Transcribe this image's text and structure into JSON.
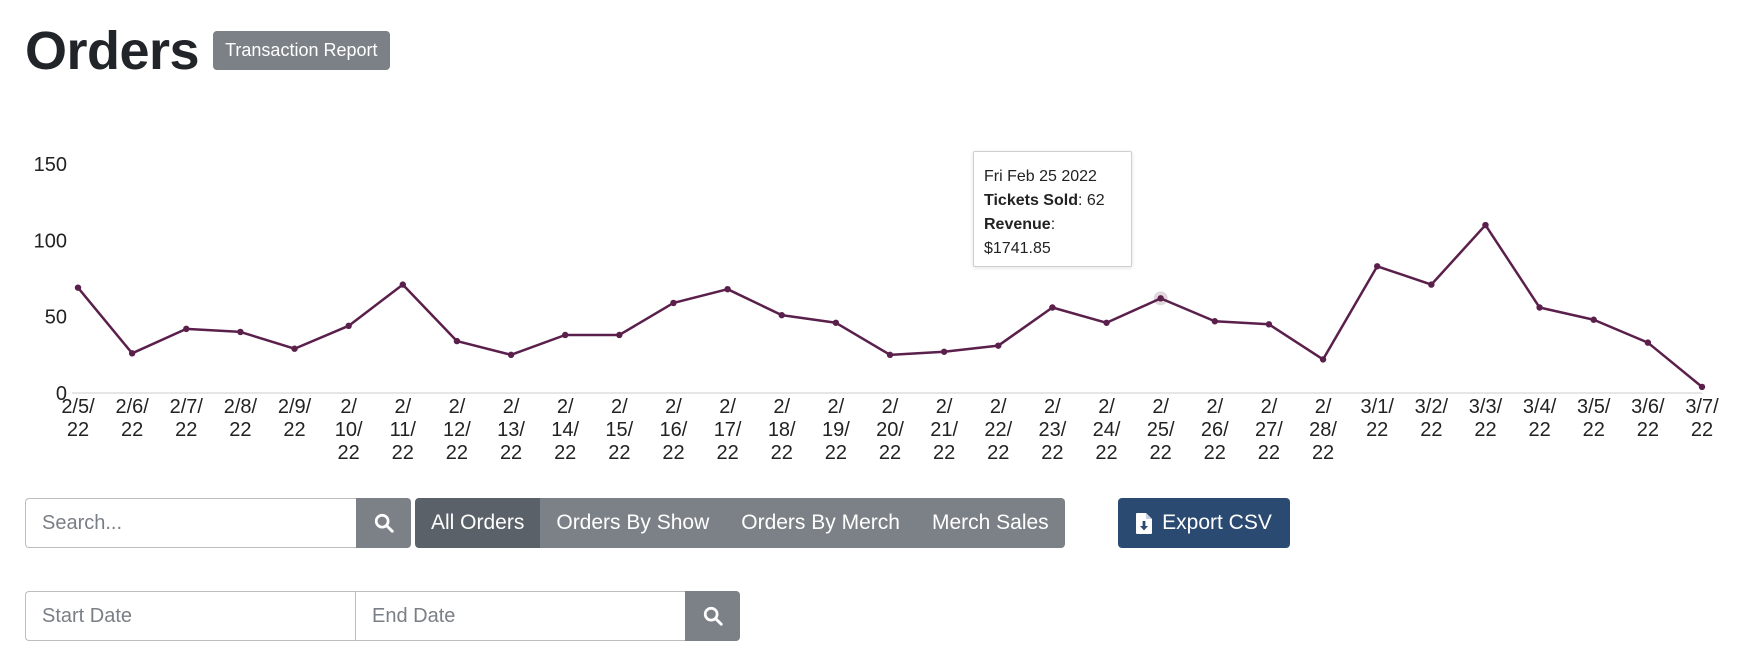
{
  "header": {
    "title": "Orders",
    "transaction_report_label": "Transaction Report"
  },
  "colors": {
    "line": "#5a1f4a",
    "axis": "#cccccc",
    "button_gray": "#7b8186",
    "button_active": "#5b6168",
    "export_blue": "#2b4a72"
  },
  "chart_data": {
    "type": "line",
    "title": "",
    "xlabel": "",
    "ylabel": "",
    "ylim": [
      0,
      150
    ],
    "yticks": [
      "0",
      "50",
      "100",
      "150"
    ],
    "grid": false,
    "categories": [
      "2/5/22",
      "2/6/22",
      "2/7/22",
      "2/8/22",
      "2/9/22",
      "2/10/22",
      "2/11/22",
      "2/12/22",
      "2/13/22",
      "2/14/22",
      "2/15/22",
      "2/16/22",
      "2/17/22",
      "2/18/22",
      "2/19/22",
      "2/20/22",
      "2/21/22",
      "2/22/22",
      "2/23/22",
      "2/24/22",
      "2/25/22",
      "2/26/22",
      "2/27/22",
      "2/28/22",
      "3/1/22",
      "3/2/22",
      "3/3/22",
      "3/4/22",
      "3/5/22",
      "3/6/22",
      "3/7/22"
    ],
    "tick_labels": [
      [
        "2/5/",
        "22"
      ],
      [
        "2/6/",
        "22"
      ],
      [
        "2/7/",
        "22"
      ],
      [
        "2/8/",
        "22"
      ],
      [
        "2/9/",
        "22"
      ],
      [
        "2/",
        "10/",
        "22"
      ],
      [
        "2/",
        "11/",
        "22"
      ],
      [
        "2/",
        "12/",
        "22"
      ],
      [
        "2/",
        "13/",
        "22"
      ],
      [
        "2/",
        "14/",
        "22"
      ],
      [
        "2/",
        "15/",
        "22"
      ],
      [
        "2/",
        "16/",
        "22"
      ],
      [
        "2/",
        "17/",
        "22"
      ],
      [
        "2/",
        "18/",
        "22"
      ],
      [
        "2/",
        "19/",
        "22"
      ],
      [
        "2/",
        "20/",
        "22"
      ],
      [
        "2/",
        "21/",
        "22"
      ],
      [
        "2/",
        "22/",
        "22"
      ],
      [
        "2/",
        "23/",
        "22"
      ],
      [
        "2/",
        "24/",
        "22"
      ],
      [
        "2/",
        "25/",
        "22"
      ],
      [
        "2/",
        "26/",
        "22"
      ],
      [
        "2/",
        "27/",
        "22"
      ],
      [
        "2/",
        "28/",
        "22"
      ],
      [
        "3/1/",
        "22"
      ],
      [
        "3/2/",
        "22"
      ],
      [
        "3/3/",
        "22"
      ],
      [
        "3/4/",
        "22"
      ],
      [
        "3/5/",
        "22"
      ],
      [
        "3/6/",
        "22"
      ],
      [
        "3/7/",
        "22"
      ]
    ],
    "series": [
      {
        "values": [
          69,
          26,
          42,
          40,
          29,
          44,
          71,
          34,
          25,
          38,
          38,
          59,
          68,
          51,
          46,
          25,
          27,
          31,
          56,
          46,
          62,
          47,
          45,
          22,
          83,
          71,
          110,
          56,
          48,
          33,
          4
        ]
      }
    ],
    "tooltip": {
      "date": "Fri Feb 25 2022",
      "tickets_label": "Tickets Sold",
      "tickets_value": "62",
      "revenue_label": "Revenue",
      "revenue_value": "$1741.85"
    }
  },
  "search": {
    "placeholder": "Search..."
  },
  "tabs": [
    {
      "label": "All Orders",
      "active": true
    },
    {
      "label": "Orders By Show",
      "active": false
    },
    {
      "label": "Orders By Merch",
      "active": false
    },
    {
      "label": "Merch Sales",
      "active": false
    }
  ],
  "export_label": "Export CSV",
  "dates": {
    "start_placeholder": "Start Date",
    "end_placeholder": "End Date"
  }
}
